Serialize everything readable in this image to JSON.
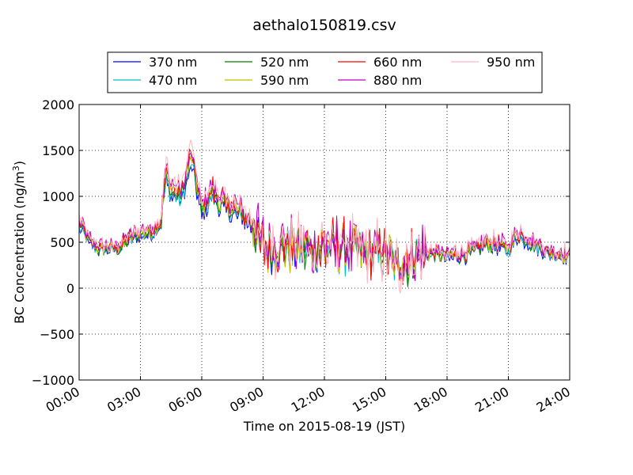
{
  "chart_data": {
    "type": "line",
    "title": "aethalo150819.csv",
    "xlabel": "Time on 2015-08-19 (JST)",
    "ylabel": "BC Concentration (ng/m³)",
    "ylabel_main": "BC Concentration (ng/m",
    "ylabel_sup": "3",
    "ylabel_close": ")",
    "xlim": [
      "00:00",
      "24:00"
    ],
    "ylim": [
      -1000,
      2000
    ],
    "grid": true,
    "grid_style": "dotted",
    "legend_position": "top-center",
    "yticks": [
      -1000,
      -500,
      0,
      500,
      1000,
      1500,
      2000
    ],
    "ytick_labels": [
      "−1000",
      "−500",
      "0",
      "500",
      "1000",
      "1500",
      "2000"
    ],
    "xticks_hours": [
      0,
      3,
      6,
      9,
      12,
      15,
      18,
      21,
      24
    ],
    "xtick_labels": [
      "00:00",
      "03:00",
      "06:00",
      "09:00",
      "12:00",
      "15:00",
      "18:00",
      "21:00",
      "24:00"
    ],
    "series": [
      {
        "name": "370 nm",
        "color": "#0000ff"
      },
      {
        "name": "470 nm",
        "color": "#00bfbf"
      },
      {
        "name": "520 nm",
        "color": "#007f00"
      },
      {
        "name": "590 nm",
        "color": "#bfbf00"
      },
      {
        "name": "660 nm",
        "color": "#ff0000"
      },
      {
        "name": "880 nm",
        "color": "#bf00bf"
      },
      {
        "name": "950 nm",
        "color": "#ffb6c1"
      }
    ],
    "base_profile": {
      "hours": [
        0,
        0.5,
        1,
        1.5,
        2,
        2.5,
        3,
        3.5,
        4,
        4.25,
        4.5,
        5,
        5.25,
        5.5,
        6,
        6.5,
        7,
        7.5,
        8,
        8.5,
        9,
        9.5,
        10,
        11,
        12,
        13,
        14,
        15,
        15.5,
        16,
        17,
        18,
        19,
        20,
        21,
        21.5,
        22,
        23,
        24
      ],
      "values": [
        720,
        520,
        430,
        440,
        450,
        560,
        610,
        620,
        720,
        1280,
        1080,
        1020,
        1250,
        1450,
        850,
        1050,
        920,
        880,
        820,
        700,
        460,
        420,
        470,
        420,
        440,
        440,
        400,
        380,
        240,
        310,
        390,
        350,
        380,
        500,
        440,
        600,
        520,
        400,
        350
      ]
    }
  }
}
